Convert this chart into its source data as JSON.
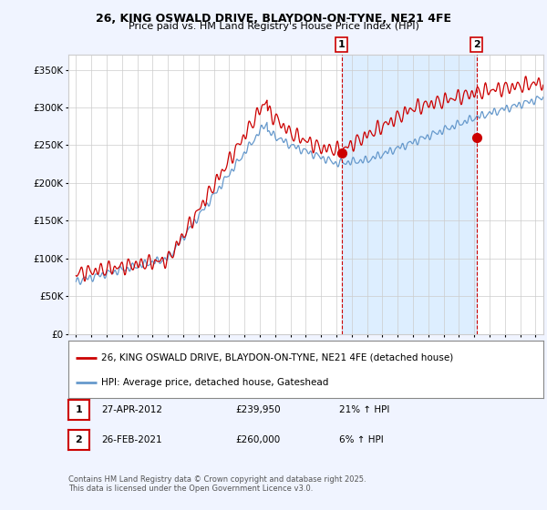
{
  "title_line1": "26, KING OSWALD DRIVE, BLAYDON-ON-TYNE, NE21 4FE",
  "title_line2": "Price paid vs. HM Land Registry's House Price Index (HPI)",
  "ylabel_ticks": [
    "£0",
    "£50K",
    "£100K",
    "£150K",
    "£200K",
    "£250K",
    "£300K",
    "£350K"
  ],
  "ytick_vals": [
    0,
    50000,
    100000,
    150000,
    200000,
    250000,
    300000,
    350000
  ],
  "ylim": [
    0,
    370000
  ],
  "xlim_start": 1994.5,
  "xlim_end": 2025.5,
  "red_color": "#cc0000",
  "blue_color": "#6699cc",
  "shade_color": "#ddeeff",
  "bg_color": "#f0f4ff",
  "plot_bg": "#ffffff",
  "grid_color": "#cccccc",
  "marker1_x": 2012.33,
  "marker1_y": 239950,
  "marker2_x": 2021.15,
  "marker2_y": 260000,
  "marker1_label": "1",
  "marker2_label": "2",
  "legend_line1": "26, KING OSWALD DRIVE, BLAYDON-ON-TYNE, NE21 4FE (detached house)",
  "legend_line2": "HPI: Average price, detached house, Gateshead",
  "table_row1": [
    "1",
    "27-APR-2012",
    "£239,950",
    "21% ↑ HPI"
  ],
  "table_row2": [
    "2",
    "26-FEB-2021",
    "£260,000",
    "6% ↑ HPI"
  ],
  "footnote": "Contains HM Land Registry data © Crown copyright and database right 2025.\nThis data is licensed under the Open Government Licence v3.0."
}
